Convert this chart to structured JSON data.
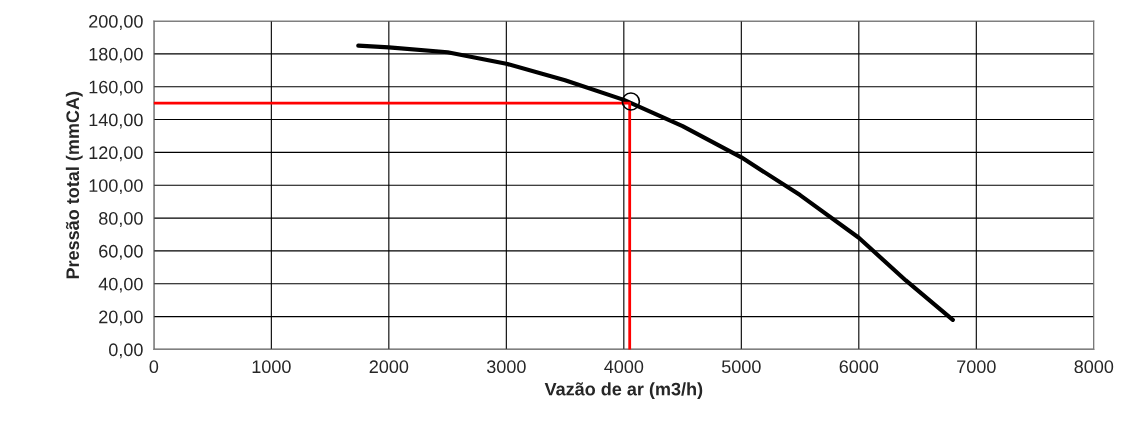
{
  "chart_data": {
    "type": "line",
    "xlabel": "Vazão de ar (m3/h)",
    "ylabel": "Pressão total (mmCA)",
    "xlim": [
      0,
      8000
    ],
    "xticks": [
      0,
      1000,
      2000,
      3000,
      4000,
      5000,
      6000,
      7000,
      8000
    ],
    "ylim": [
      0,
      200
    ],
    "yticks": [
      {
        "value": 0,
        "label": "0,00"
      },
      {
        "value": 20,
        "label": "20,00"
      },
      {
        "value": 40,
        "label": "40,00"
      },
      {
        "value": 60,
        "label": "60,00"
      },
      {
        "value": 80,
        "label": "80,00"
      },
      {
        "value": 100,
        "label": "100,00"
      },
      {
        "value": 120,
        "label": "120,00"
      },
      {
        "value": 140,
        "label": "140,00"
      },
      {
        "value": 160,
        "label": "160,00"
      },
      {
        "value": 180,
        "label": "180,00"
      },
      {
        "value": 200,
        "label": "200,00"
      }
    ],
    "grid": true,
    "legend": false,
    "series": [
      {
        "color": "#000000",
        "x": [
          1740,
          2000,
          2500,
          3000,
          3500,
          4000,
          4500,
          5000,
          5500,
          6000,
          6400,
          6800
        ],
        "values": [
          185,
          184,
          181,
          174,
          164,
          152,
          136,
          117,
          94,
          68,
          42,
          18
        ]
      },
      {
        "color": "#ff0000",
        "x": [
          0,
          4050,
          4050
        ],
        "values": [
          150,
          150,
          0
        ]
      },
      {
        "type": "scatter",
        "color": "#000000",
        "marker": "circle",
        "x": [
          4060
        ],
        "values": [
          151
        ]
      }
    ]
  }
}
